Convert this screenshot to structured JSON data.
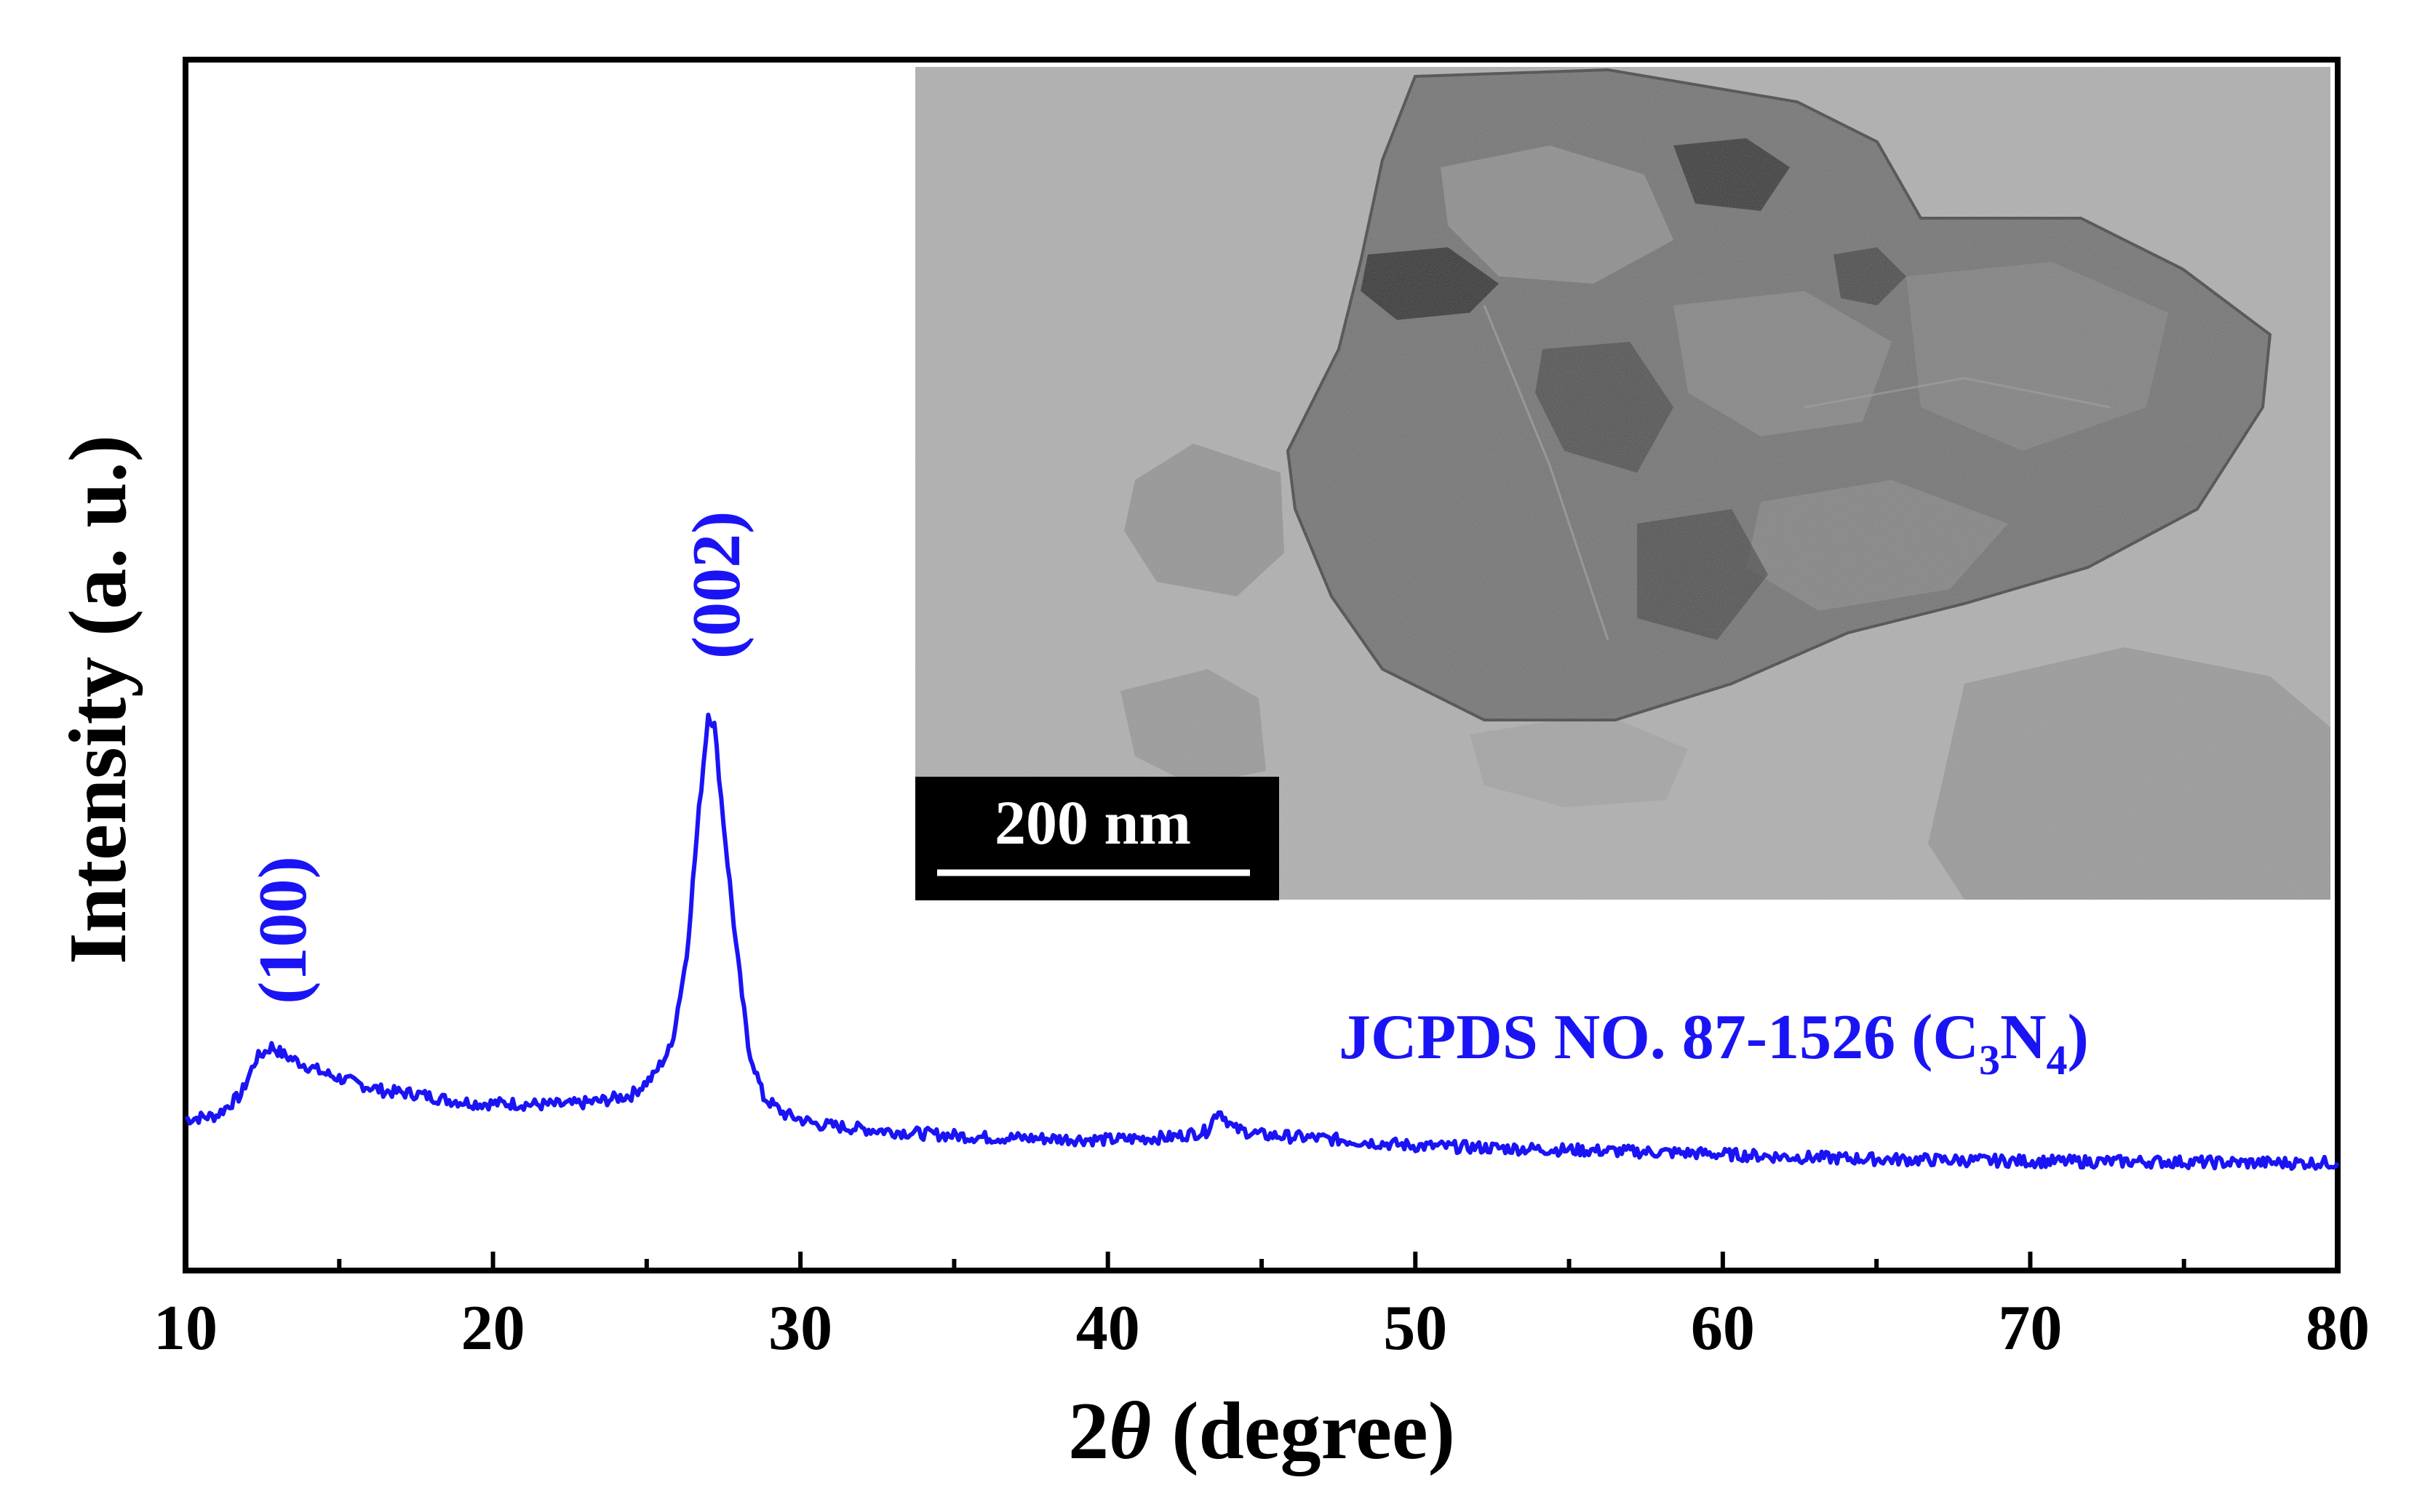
{
  "colors": {
    "series": "#1a14f5",
    "axis": "#000000",
    "inset_bg": "#aeaeae",
    "scalebar_bg": "#000000",
    "scalebar_fg": "#ffffff"
  },
  "chart_data": {
    "type": "line",
    "title": "",
    "xlabel_prefix": "2",
    "xlabel_symbol": "θ",
    "xlabel_suffix": " (degree)",
    "ylabel": "Intensity (a. u.)",
    "xlim": [
      10,
      80
    ],
    "ylim": [
      0,
      100
    ],
    "x_ticks": [
      "10",
      "20",
      "30",
      "40",
      "50",
      "60",
      "70",
      "80"
    ],
    "y_ticks_shown": false,
    "grid": false,
    "series": [
      {
        "x": [
          10,
          11,
          11.8,
          12.3,
          12.8,
          13.2,
          13.7,
          14.5,
          15.5,
          16.5,
          17.5,
          18.5,
          19.5,
          20.5,
          21.5,
          22.5,
          23.5,
          24.5,
          25.2,
          25.8,
          26.3,
          26.7,
          27.0,
          27.2,
          27.5,
          27.9,
          28.3,
          28.8,
          29.5,
          30.5,
          32,
          34,
          36,
          38,
          40,
          42,
          43.2,
          43.6,
          44.1,
          45,
          47,
          50,
          53,
          56,
          59,
          62,
          65,
          68,
          71,
          74,
          77,
          80
        ],
        "y": [
          12.5,
          12.8,
          14.5,
          17.5,
          18.5,
          17.8,
          17.2,
          16.3,
          15.5,
          14.8,
          14.6,
          14.1,
          13.8,
          13.8,
          13.7,
          13.7,
          14.0,
          14.5,
          16.0,
          18.5,
          26.0,
          38.0,
          46.0,
          45.0,
          37.0,
          27.0,
          18.5,
          14.3,
          12.9,
          12.1,
          11.7,
          11.3,
          11.0,
          10.9,
          10.8,
          11.0,
          11.5,
          13.3,
          11.7,
          11.2,
          10.9,
          10.3,
          10.1,
          9.9,
          9.7,
          9.4,
          9.2,
          9.1,
          9.0,
          9.0,
          8.9,
          8.9
        ]
      }
    ],
    "annotations": [
      {
        "text": "(100)",
        "x": 13.2,
        "y": 22
      },
      {
        "text": "(002)",
        "x": 27.3,
        "y": 50.5
      },
      {
        "text": "JCPDS NO. 87-1526 (C",
        "sub1": "3",
        "mid": "N",
        "sub2": "4",
        "end": ")"
      }
    ]
  },
  "inset": {
    "scalebar_label": "200 nm"
  }
}
